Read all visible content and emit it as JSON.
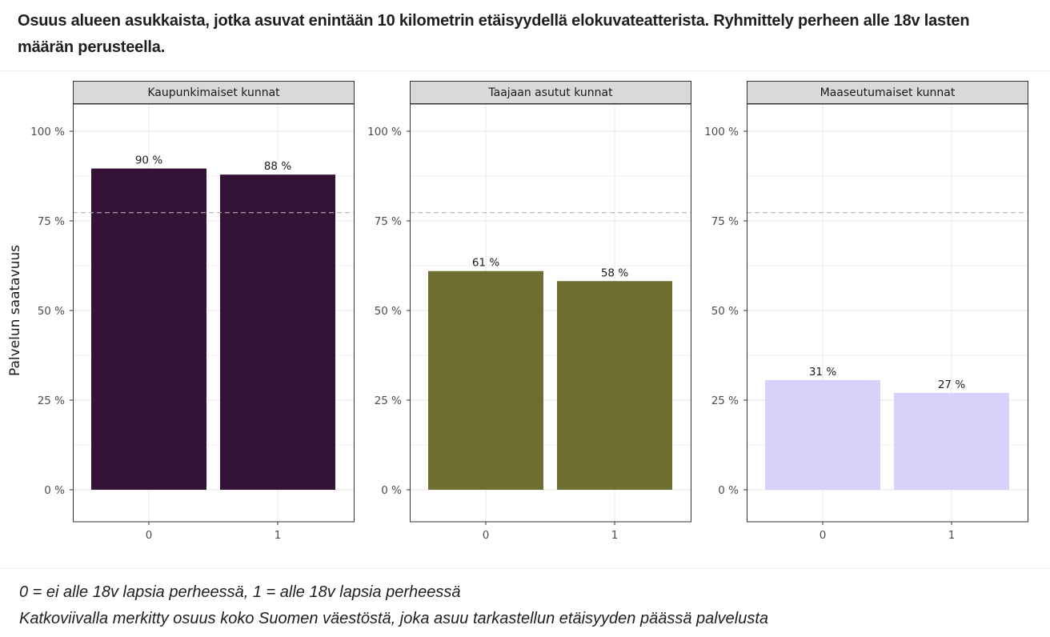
{
  "title": "Osuus alueen asukkaista, jotka asuvat enintään 10 kilometrin etäisyydellä elokuvateatterista. Ryhmittely perheen alle 18v lasten määrän perusteella.",
  "footnotes": [
    "0 = ei alle 18v lapsia perheessä, 1 = alle 18v lapsia perheessä",
    "Katkoviivalla merkitty osuus koko Suomen väestöstä, joka asuu tarkastellun etäisyyden päässä palvelusta"
  ],
  "chart_data": {
    "type": "bar",
    "ylabel": "Palvelun saatavuus",
    "ylim": [
      0,
      1.1
    ],
    "yticks": [
      0,
      0.25,
      0.5,
      0.75,
      1.0
    ],
    "ytick_labels": [
      "0 %",
      "25 %",
      "50 %",
      "75 %",
      "100 %"
    ],
    "categories": [
      "0",
      "1"
    ],
    "reference_line": 0.773,
    "grid": true,
    "panels": [
      {
        "name": "Kaupunkimaiset kunnat",
        "color": "#341236",
        "values": [
          0.896,
          0.879
        ],
        "labels": [
          "90 %",
          "88 %"
        ]
      },
      {
        "name": "Taajaan asutut kunnat",
        "color": "#6e6e30",
        "values": [
          0.61,
          0.582
        ],
        "labels": [
          "61 %",
          "58 %"
        ]
      },
      {
        "name": "Maaseutumaiset kunnat",
        "color": "#d8d2fb",
        "values": [
          0.306,
          0.27
        ],
        "labels": [
          "31 %",
          "27 %"
        ]
      }
    ]
  }
}
